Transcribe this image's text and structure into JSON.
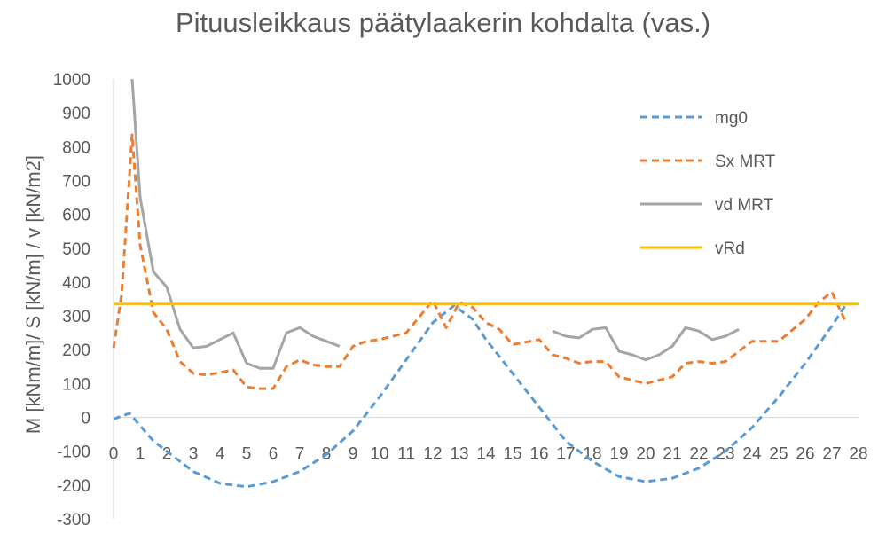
{
  "chart_data": {
    "type": "line",
    "title": "Pituusleikkaus päätylaakerin kohdalta (vas.)",
    "xlabel": "",
    "ylabel": "M [kNm/m]/ S [kN/m] / v [kN/m2]",
    "xlim": [
      0,
      28
    ],
    "ylim": [
      -300,
      1000
    ],
    "x_ticks": [
      0,
      1,
      2,
      3,
      4,
      5,
      6,
      7,
      8,
      9,
      10,
      11,
      12,
      13,
      14,
      15,
      16,
      17,
      18,
      19,
      20,
      21,
      22,
      23,
      24,
      25,
      26,
      27,
      28
    ],
    "y_ticks": [
      -300,
      -200,
      -100,
      0,
      100,
      200,
      300,
      400,
      500,
      600,
      700,
      800,
      900,
      1000
    ],
    "legend_position": "top-right",
    "grid": false,
    "series": [
      {
        "name": "mg0",
        "color": "#5b9bd5",
        "dash": "dashed",
        "points": [
          [
            0,
            -5
          ],
          [
            0.6,
            12
          ],
          [
            1.5,
            -70
          ],
          [
            3,
            -160
          ],
          [
            4,
            -195
          ],
          [
            5,
            -205
          ],
          [
            6,
            -190
          ],
          [
            7,
            -160
          ],
          [
            8,
            -110
          ],
          [
            9,
            -40
          ],
          [
            10,
            60
          ],
          [
            11,
            170
          ],
          [
            12,
            280
          ],
          [
            12.8,
            330
          ],
          [
            13.5,
            290
          ],
          [
            14,
            230
          ],
          [
            15,
            130
          ],
          [
            16,
            30
          ],
          [
            17,
            -70
          ],
          [
            18,
            -130
          ],
          [
            19,
            -175
          ],
          [
            20,
            -190
          ],
          [
            21,
            -180
          ],
          [
            22,
            -150
          ],
          [
            23,
            -100
          ],
          [
            24,
            -30
          ],
          [
            25,
            60
          ],
          [
            26,
            160
          ],
          [
            27,
            270
          ],
          [
            27.5,
            330
          ]
        ]
      },
      {
        "name": "Sx MRT",
        "color": "#ed7d31",
        "dash": "dashed",
        "points": [
          [
            0,
            205
          ],
          [
            0.3,
            360
          ],
          [
            0.7,
            835
          ],
          [
            1,
            510
          ],
          [
            1.5,
            310
          ],
          [
            2,
            260
          ],
          [
            2.5,
            165
          ],
          [
            3,
            130
          ],
          [
            3.5,
            125
          ],
          [
            4.5,
            140
          ],
          [
            5,
            90
          ],
          [
            5.5,
            85
          ],
          [
            6,
            85
          ],
          [
            6.5,
            150
          ],
          [
            7,
            170
          ],
          [
            7.5,
            155
          ],
          [
            8,
            150
          ],
          [
            8.5,
            150
          ],
          [
            9,
            210
          ],
          [
            9.5,
            225
          ],
          [
            10,
            230
          ],
          [
            11,
            250
          ],
          [
            12,
            345
          ],
          [
            12.5,
            265
          ],
          [
            13,
            340
          ],
          [
            13.5,
            325
          ],
          [
            14,
            280
          ],
          [
            14.5,
            260
          ],
          [
            15,
            215
          ],
          [
            16,
            230
          ],
          [
            16.5,
            185
          ],
          [
            17,
            175
          ],
          [
            17.5,
            160
          ],
          [
            18,
            165
          ],
          [
            18.5,
            165
          ],
          [
            19,
            120
          ],
          [
            20,
            100
          ],
          [
            21,
            120
          ],
          [
            21.5,
            160
          ],
          [
            22,
            165
          ],
          [
            22.5,
            160
          ],
          [
            23,
            165
          ],
          [
            24,
            225
          ],
          [
            25,
            225
          ],
          [
            26,
            290
          ],
          [
            26.5,
            340
          ],
          [
            27,
            370
          ],
          [
            27.5,
            285
          ]
        ]
      },
      {
        "name": "vd MRT",
        "color": "#a5a5a5",
        "dash": "solid",
        "segments": [
          [
            [
              0.7,
              1000
            ],
            [
              1,
              650
            ],
            [
              1.5,
              430
            ],
            [
              2,
              385
            ],
            [
              2.5,
              260
            ],
            [
              3,
              205
            ],
            [
              3.5,
              210
            ],
            [
              4,
              230
            ],
            [
              4.5,
              250
            ],
            [
              5,
              160
            ],
            [
              5.5,
              145
            ],
            [
              6,
              145
            ],
            [
              6.5,
              250
            ],
            [
              7,
              265
            ],
            [
              7.5,
              240
            ],
            [
              8,
              225
            ],
            [
              8.5,
              210
            ]
          ],
          [
            [
              16.5,
              255
            ],
            [
              17,
              240
            ],
            [
              17.5,
              235
            ],
            [
              18,
              260
            ],
            [
              18.5,
              265
            ],
            [
              19,
              195
            ],
            [
              19.5,
              185
            ],
            [
              20,
              170
            ],
            [
              20.5,
              185
            ],
            [
              21,
              210
            ],
            [
              21.5,
              265
            ],
            [
              22,
              255
            ],
            [
              22.5,
              230
            ],
            [
              23,
              240
            ],
            [
              23.5,
              260
            ]
          ]
        ]
      },
      {
        "name": "vRd",
        "color": "#ffc000",
        "dash": "solid",
        "points": [
          [
            0,
            335
          ],
          [
            28,
            335
          ]
        ]
      }
    ]
  }
}
